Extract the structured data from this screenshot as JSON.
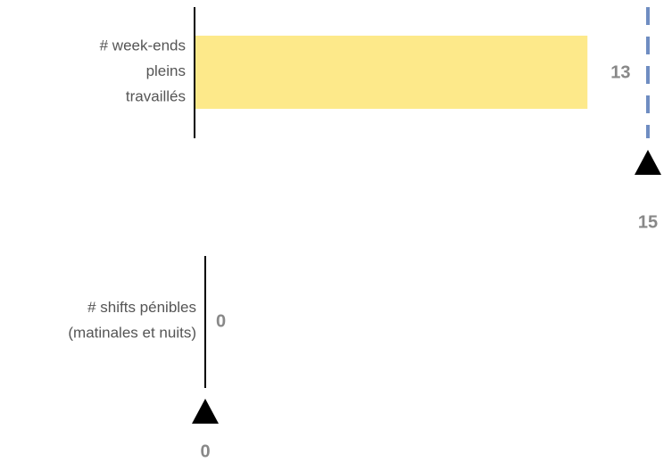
{
  "chart_data": [
    {
      "type": "bullet",
      "categories": [
        [
          "# week-ends",
          "pleins",
          "travaillés"
        ]
      ],
      "values": [
        13
      ],
      "targets": [
        15
      ],
      "xlim": [
        0,
        15
      ],
      "color": "#fde98a",
      "target_color": "#6f8dc2"
    },
    {
      "type": "bullet",
      "categories": [
        [
          "# shifts pénibles",
          "(matinales et nuits)"
        ]
      ],
      "values": [
        0
      ],
      "targets": [
        0
      ],
      "xlim": [
        0,
        15
      ],
      "color": "#fde98a",
      "target_color": "#6f8dc2"
    }
  ]
}
